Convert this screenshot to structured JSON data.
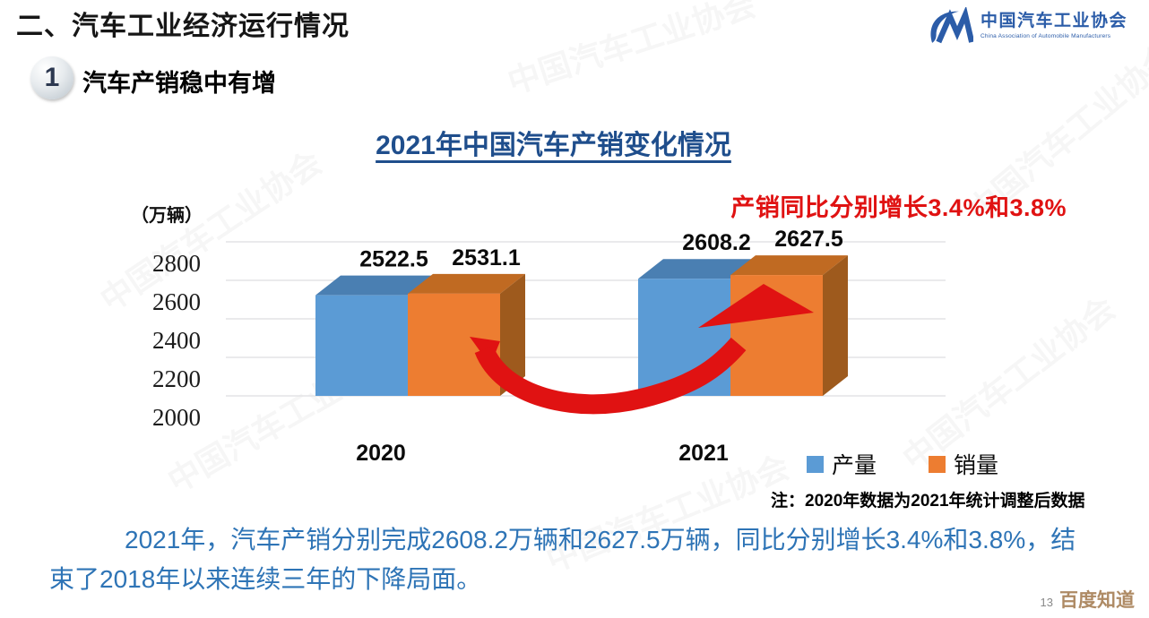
{
  "page": {
    "section_title": "二、汽车工业经济运行情况",
    "badge_number": "1",
    "subsection_title": "汽车产销稳中有增",
    "background_watermark_text": "中国汽车工业协会",
    "footer_page_number": "13",
    "footer_watermark": "百度知道"
  },
  "logo": {
    "name_cn": "中国汽车工业协会",
    "name_en": "China Association of Automobile Manufacturers"
  },
  "colors": {
    "accent_red": "#E01212",
    "title_blue": "#1F4E8C",
    "text_blue": "#2E74B6",
    "logo_blue": "#2B5CA8",
    "baidu_brown": "#AE8A64"
  },
  "chart_data": {
    "type": "bar",
    "title": "2021年中国汽车产销变化情况",
    "annotation": "产销同比分别增长3.4%和3.8%",
    "unit_label": "（万辆）",
    "categories": [
      "2020",
      "2021"
    ],
    "series": [
      {
        "name": "产量",
        "color": "#5B9BD5",
        "top_color": "#4A7FB2",
        "side_color": "#3E6B96",
        "values": [
          2522.5,
          2608.2
        ]
      },
      {
        "name": "销量",
        "color": "#ED7D31",
        "top_color": "#C06A22",
        "side_color": "#9E5A1D",
        "values": [
          2531.1,
          2627.5
        ]
      }
    ],
    "y_ticks": [
      2000,
      2200,
      2400,
      2600,
      2800
    ],
    "ylim": [
      2000,
      2900
    ],
    "grid": true,
    "legend_position": "bottom-right",
    "note": "注：2020年数据为2021年统计调整后数据"
  },
  "summary": {
    "text": "2021年，汽车产销分别完成2608.2万辆和2627.5万辆，同比分别增长3.4%和3.8%，结束了2018年以来连续三年的下降局面。"
  }
}
